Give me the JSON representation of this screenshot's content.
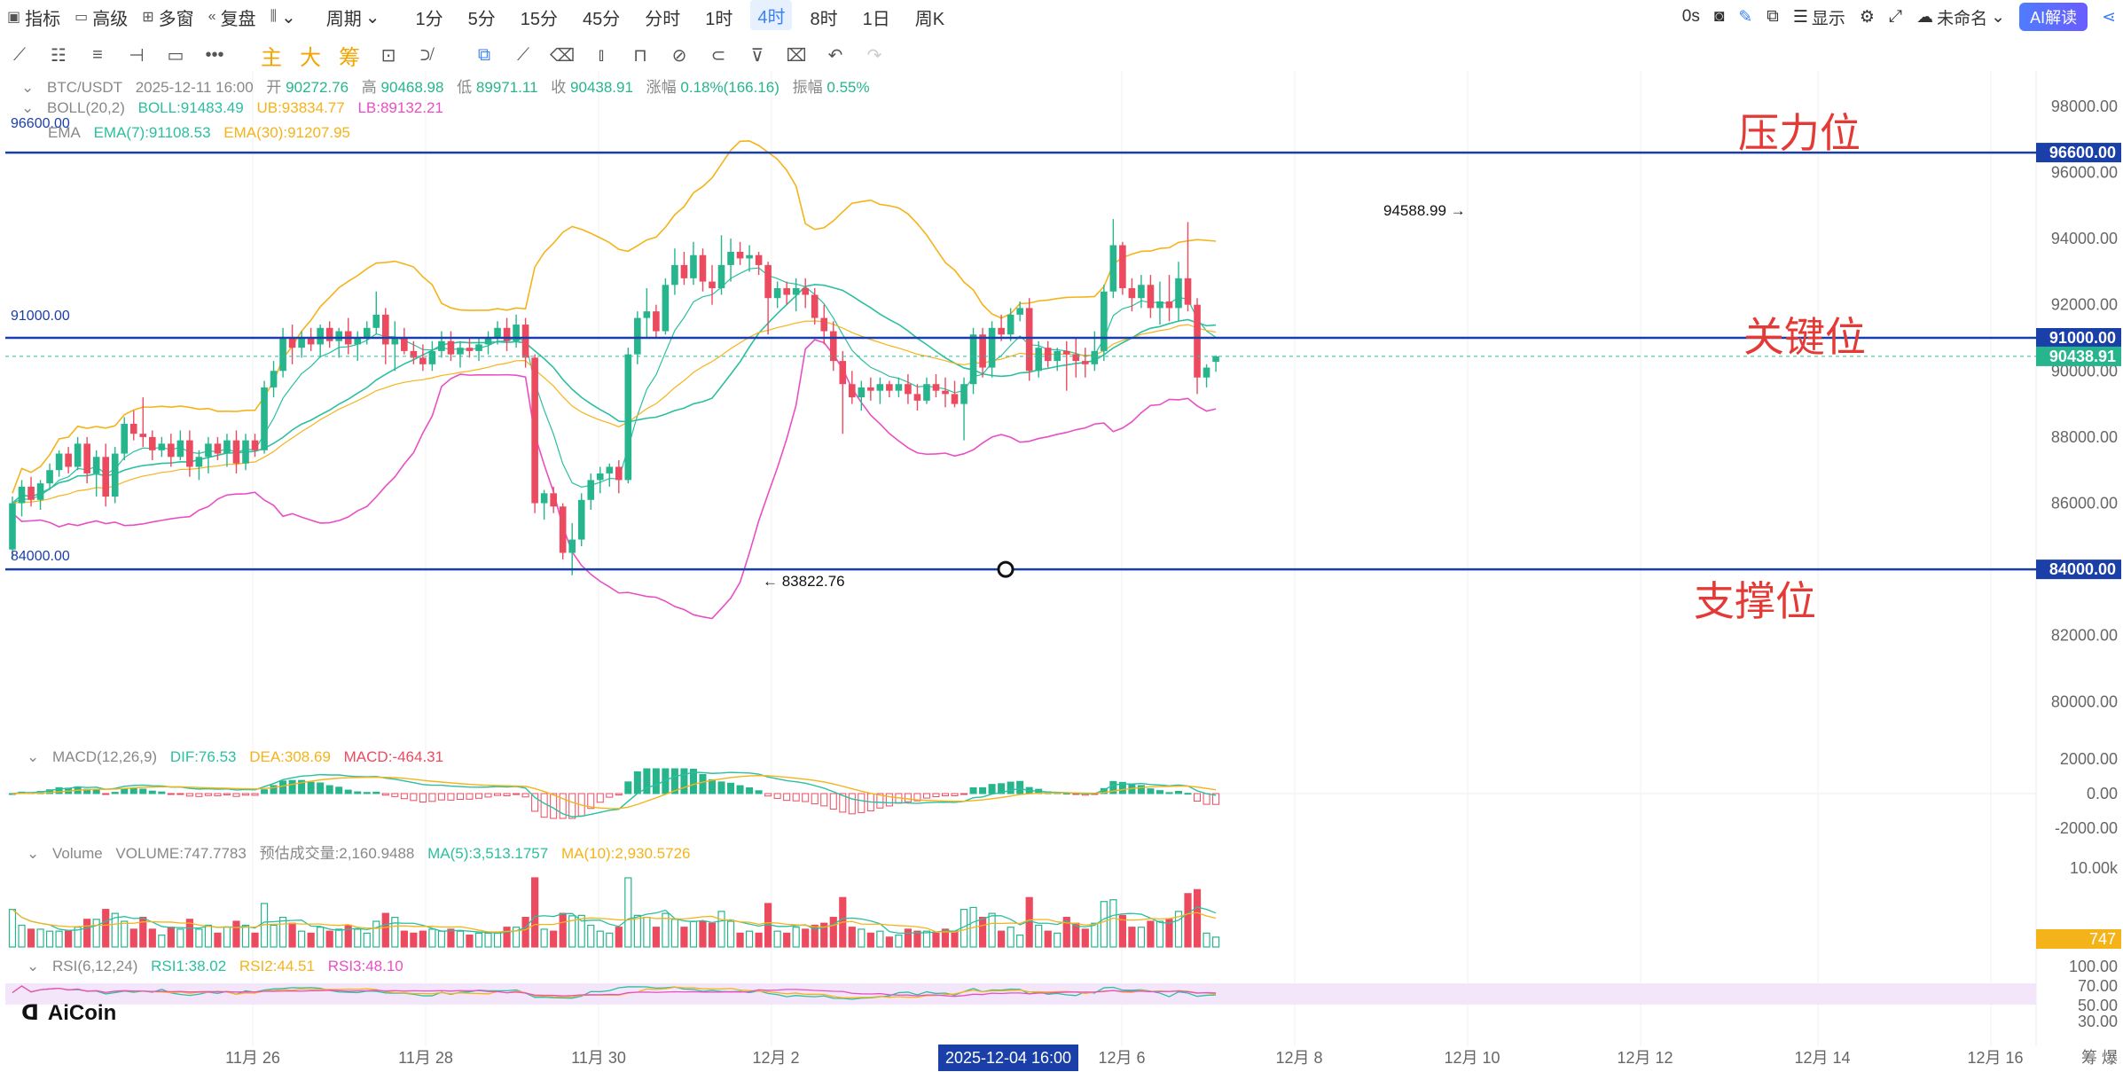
{
  "toolbar": {
    "indicator": "指标",
    "advanced": "高级",
    "multi_window": "多窗",
    "replay": "复盘",
    "period": "周期",
    "periods": [
      "1分",
      "5分",
      "15分",
      "45分",
      "分时",
      "1时",
      "4时",
      "8时",
      "1日",
      "周K"
    ],
    "selected_period": "4时",
    "timer": "0s",
    "display": "显示",
    "unnamed": "未命名",
    "ai_read": "AI解读"
  },
  "drawing_tools": {
    "zhu": "主",
    "da": "大",
    "chou": "筹"
  },
  "header": {
    "symbol": "BTC/USDT",
    "datetime": "2025-12-11 16:00",
    "open_label": "开",
    "open": "90272.76",
    "high_label": "高",
    "high": "90468.98",
    "low_label": "低",
    "low": "89971.11",
    "close_label": "收",
    "close": "90438.91",
    "change_label": "涨幅",
    "change": "0.18%(166.16)",
    "amp_label": "振幅",
    "amp": "0.55%"
  },
  "indicators": {
    "boll": {
      "name": "BOLL(20,2)",
      "mid": "BOLL:91483.49",
      "ub": "UB:93834.77",
      "lb": "LB:89132.21"
    },
    "ema": {
      "name": "EMA",
      "ema7": "EMA(7):91108.53",
      "ema30": "EMA(30):91207.95"
    },
    "macd": {
      "name": "MACD(12,26,9)",
      "dif": "DIF:76.53",
      "dea": "DEA:308.69",
      "macd": "MACD:-464.31"
    },
    "volume": {
      "name": "Volume",
      "vol": "VOLUME:747.7783",
      "est": "预估成交量:2,160.9488",
      "ma5": "MA(5):3,513.1757",
      "ma10": "MA(10):2,930.5726"
    },
    "rsi": {
      "name": "RSI(6,12,24)",
      "rsi1": "RSI1:38.02",
      "rsi2": "RSI2:44.51",
      "rsi3": "RSI3:48.10"
    }
  },
  "annotations": {
    "pressure": "压力位",
    "key": "关键位",
    "support": "支撑位",
    "high_mark": "94588.99",
    "low_mark": "83822.76",
    "line_96600": "96600.00",
    "line_91000": "91000.00",
    "line_84000": "84000.00"
  },
  "price_axis": {
    "ticks": [
      "98000.00",
      "96000.00",
      "94000.00",
      "92000.00",
      "90000.00",
      "88000.00",
      "86000.00",
      "84000.00",
      "82000.00",
      "80000.00"
    ],
    "tags": [
      "96600.00",
      "91000.00",
      "90438.91",
      "84000.00"
    ]
  },
  "macd_axis": [
    "2000.00",
    "0.00",
    "-2000.00"
  ],
  "vol_axis": {
    "tick": "10.00k",
    "tag": "747"
  },
  "rsi_axis": [
    "100.00",
    "70.00",
    "50.00",
    "30.00"
  ],
  "time_axis": {
    "labels": [
      "11月 26",
      "11月 28",
      "11月 30",
      "12月 2",
      "12月 6",
      "12月 8",
      "12月 10",
      "12月 12",
      "12月 14",
      "12月 16"
    ],
    "cursor": "2025-12-04 16:00",
    "right": "筹 爆"
  },
  "brand": "AiCoin",
  "colors": {
    "up": "#26b58d",
    "down": "#ec4a5f",
    "boll_mid": "#2bbfa0",
    "boll_ub": "#f5b31a",
    "boll_lb": "#e94fc4",
    "level": "#1a3fa8",
    "annotation": "#e53935"
  },
  "chart_data": {
    "type": "candlestick",
    "title": "BTC/USDT 4时",
    "price_range": [
      79500,
      98800
    ],
    "levels": [
      96600,
      91000,
      84000
    ],
    "last_price": 90438.91,
    "candles": [
      [
        84600,
        86200,
        84300,
        86000
      ],
      [
        86000,
        86700,
        85600,
        86500
      ],
      [
        86500,
        86800,
        85900,
        86100
      ],
      [
        86100,
        86700,
        85800,
        86600
      ],
      [
        86600,
        87200,
        86400,
        87000
      ],
      [
        87000,
        87600,
        86800,
        87500
      ],
      [
        87500,
        87700,
        86900,
        87100
      ],
      [
        87100,
        88000,
        87000,
        87800
      ],
      [
        87800,
        88000,
        86600,
        86900
      ],
      [
        86900,
        87600,
        86200,
        87400
      ],
      [
        87400,
        87800,
        85900,
        86200
      ],
      [
        86200,
        87700,
        86000,
        87500
      ],
      [
        87500,
        88600,
        87300,
        88400
      ],
      [
        88400,
        88800,
        87900,
        88100
      ],
      [
        88100,
        89200,
        87700,
        88000
      ],
      [
        88000,
        88200,
        87300,
        87600
      ],
      [
        87600,
        88000,
        87400,
        87800
      ],
      [
        87800,
        88100,
        87100,
        87400
      ],
      [
        87400,
        88200,
        87300,
        87900
      ],
      [
        87900,
        88200,
        86800,
        87100
      ],
      [
        87100,
        87600,
        86700,
        87400
      ],
      [
        87400,
        88000,
        86900,
        87800
      ],
      [
        87800,
        88000,
        87300,
        87500
      ],
      [
        87500,
        88100,
        87100,
        87900
      ],
      [
        87900,
        88200,
        86900,
        87200
      ],
      [
        87200,
        88100,
        87000,
        87900
      ],
      [
        87900,
        88100,
        87400,
        87600
      ],
      [
        87600,
        89700,
        87500,
        89500
      ],
      [
        89500,
        90300,
        89200,
        90000
      ],
      [
        90000,
        91300,
        89800,
        91000
      ],
      [
        91000,
        91400,
        90200,
        90700
      ],
      [
        90700,
        91200,
        90400,
        91000
      ],
      [
        91000,
        91300,
        90600,
        90800
      ],
      [
        90800,
        91400,
        90400,
        91300
      ],
      [
        91300,
        91500,
        90700,
        90900
      ],
      [
        90900,
        91300,
        90400,
        91200
      ],
      [
        91200,
        91600,
        90500,
        90800
      ],
      [
        90800,
        91200,
        90300,
        91000
      ],
      [
        91000,
        91500,
        90800,
        91300
      ],
      [
        91300,
        92400,
        91100,
        91700
      ],
      [
        91700,
        91900,
        90200,
        90800
      ],
      [
        90800,
        91500,
        90000,
        91000
      ],
      [
        91000,
        91300,
        90500,
        90600
      ],
      [
        90600,
        90900,
        90200,
        90400
      ],
      [
        90400,
        90800,
        90000,
        90200
      ],
      [
        90200,
        90900,
        90000,
        90600
      ],
      [
        90600,
        91200,
        90400,
        90900
      ],
      [
        90900,
        91200,
        90300,
        90500
      ],
      [
        90500,
        90900,
        90100,
        90700
      ],
      [
        90700,
        91000,
        90400,
        90600
      ],
      [
        90600,
        91000,
        90300,
        90800
      ],
      [
        90800,
        91200,
        90500,
        91000
      ],
      [
        91000,
        91500,
        90800,
        91300
      ],
      [
        91300,
        91600,
        90600,
        90900
      ],
      [
        90900,
        91700,
        90700,
        91400
      ],
      [
        91400,
        91600,
        90100,
        90400
      ],
      [
        90400,
        90500,
        85700,
        86000
      ],
      [
        86000,
        86400,
        85500,
        86300
      ],
      [
        86300,
        86500,
        85700,
        85900
      ],
      [
        85900,
        86000,
        84300,
        84500
      ],
      [
        84500,
        85400,
        83822.76,
        84900
      ],
      [
        84900,
        86300,
        84700,
        86100
      ],
      [
        86100,
        86900,
        85800,
        86700
      ],
      [
        86700,
        87100,
        86300,
        86900
      ],
      [
        86900,
        87200,
        86500,
        87100
      ],
      [
        87100,
        87300,
        86300,
        86700
      ],
      [
        86700,
        90700,
        86600,
        90500
      ],
      [
        90500,
        91800,
        90200,
        91600
      ],
      [
        91600,
        92500,
        91000,
        91800
      ],
      [
        91800,
        92000,
        91000,
        91200
      ],
      [
        91200,
        92800,
        91100,
        92600
      ],
      [
        92600,
        93700,
        92300,
        93200
      ],
      [
        93200,
        93600,
        92600,
        92800
      ],
      [
        92800,
        93900,
        92600,
        93500
      ],
      [
        93500,
        93700,
        92400,
        92700
      ],
      [
        92700,
        93200,
        92000,
        92500
      ],
      [
        92500,
        94100,
        92300,
        93200
      ],
      [
        93200,
        94000,
        92700,
        93600
      ],
      [
        93600,
        93900,
        93200,
        93400
      ],
      [
        93400,
        93800,
        93000,
        93500
      ],
      [
        93500,
        93600,
        92900,
        93200
      ],
      [
        93200,
        93300,
        91100,
        92200
      ],
      [
        92200,
        92700,
        91900,
        92500
      ],
      [
        92500,
        92700,
        92000,
        92300
      ],
      [
        92300,
        92800,
        91800,
        92500
      ],
      [
        92500,
        92800,
        91900,
        92300
      ],
      [
        92300,
        92500,
        91400,
        91600
      ],
      [
        91600,
        92000,
        90800,
        91200
      ],
      [
        91200,
        91500,
        90000,
        90300
      ],
      [
        90300,
        90600,
        88100,
        89600
      ],
      [
        89600,
        90000,
        89000,
        89200
      ],
      [
        89200,
        89700,
        88800,
        89500
      ],
      [
        89500,
        89800,
        89100,
        89400
      ],
      [
        89400,
        89800,
        89000,
        89600
      ],
      [
        89600,
        89700,
        89200,
        89400
      ],
      [
        89400,
        89800,
        89200,
        89600
      ],
      [
        89600,
        89900,
        89000,
        89300
      ],
      [
        89300,
        89600,
        88800,
        89100
      ],
      [
        89100,
        89800,
        89000,
        89600
      ],
      [
        89600,
        89900,
        89200,
        89400
      ],
      [
        89400,
        89800,
        88900,
        89300
      ],
      [
        89300,
        89700,
        88900,
        89000
      ],
      [
        89000,
        89800,
        87900,
        89600
      ],
      [
        89600,
        91300,
        89300,
        91100
      ],
      [
        91100,
        91300,
        89800,
        90100
      ],
      [
        90100,
        91500,
        89800,
        91300
      ],
      [
        91300,
        91700,
        90900,
        91100
      ],
      [
        91100,
        91900,
        90900,
        91700
      ],
      [
        91700,
        92100,
        91500,
        91900
      ],
      [
        91900,
        92200,
        89700,
        90000
      ],
      [
        90000,
        90900,
        89800,
        90700
      ],
      [
        90700,
        90900,
        90100,
        90300
      ],
      [
        90300,
        90700,
        90000,
        90600
      ],
      [
        90600,
        90900,
        89400,
        90500
      ],
      [
        90500,
        91000,
        89800,
        90300
      ],
      [
        90300,
        90700,
        89800,
        90200
      ],
      [
        90200,
        91200,
        90000,
        90600
      ],
      [
        90600,
        92600,
        90300,
        92400
      ],
      [
        92400,
        94588.99,
        92200,
        93800
      ],
      [
        93800,
        93900,
        92300,
        92500
      ],
      [
        92500,
        92800,
        91800,
        92200
      ],
      [
        92200,
        92900,
        91900,
        92600
      ],
      [
        92600,
        92900,
        91600,
        91900
      ],
      [
        91900,
        92700,
        91400,
        92100
      ],
      [
        92100,
        92900,
        91500,
        91900
      ],
      [
        91900,
        93300,
        91500,
        92800
      ],
      [
        92800,
        94500,
        91800,
        92000
      ],
      [
        92000,
        92200,
        89300,
        89800
      ],
      [
        89800,
        90200,
        89500,
        90100
      ],
      [
        90272.76,
        90468.98,
        89971.11,
        90438.91
      ]
    ]
  }
}
